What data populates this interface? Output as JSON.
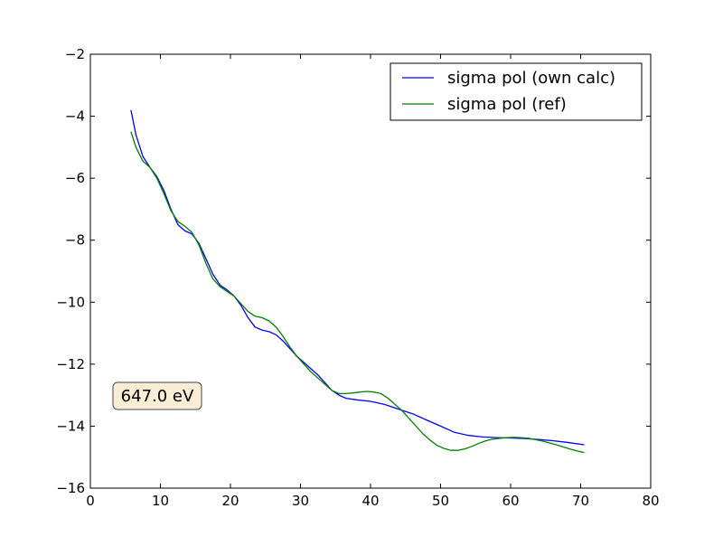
{
  "chart_data": {
    "type": "line",
    "xlim": [
      0,
      80
    ],
    "ylim": [
      -16,
      -2
    ],
    "x_ticks": [
      0,
      10,
      20,
      30,
      40,
      50,
      60,
      70,
      80
    ],
    "y_ticks": [
      -2,
      -4,
      -6,
      -8,
      -10,
      -12,
      -14,
      -16
    ],
    "x_tick_labels": [
      "0",
      "10",
      "20",
      "30",
      "40",
      "50",
      "60",
      "70",
      "80"
    ],
    "y_tick_labels": [
      "−2",
      "−4",
      "−6",
      "−8",
      "−10",
      "−12",
      "−14",
      "−16"
    ],
    "grid": false,
    "legend_position": "top-right",
    "annotation": "647.0 eV",
    "series": [
      {
        "name": "sigma pol (own calc)",
        "color": "#0000ff",
        "points": [
          [
            5.8,
            -3.8
          ],
          [
            6.5,
            -4.6
          ],
          [
            7.5,
            -5.3
          ],
          [
            8.5,
            -5.65
          ],
          [
            9.5,
            -5.95
          ],
          [
            10.5,
            -6.4
          ],
          [
            11.5,
            -7.0
          ],
          [
            12.5,
            -7.5
          ],
          [
            13.5,
            -7.7
          ],
          [
            14.5,
            -7.8
          ],
          [
            15.5,
            -8.1
          ],
          [
            16.5,
            -8.6
          ],
          [
            17.5,
            -9.1
          ],
          [
            18.5,
            -9.45
          ],
          [
            19.5,
            -9.6
          ],
          [
            20.5,
            -9.8
          ],
          [
            21.5,
            -10.1
          ],
          [
            22.5,
            -10.5
          ],
          [
            23.5,
            -10.8
          ],
          [
            24.5,
            -10.9
          ],
          [
            25.5,
            -10.95
          ],
          [
            26.5,
            -11.05
          ],
          [
            27.5,
            -11.25
          ],
          [
            28.5,
            -11.5
          ],
          [
            29.5,
            -11.75
          ],
          [
            30.5,
            -11.95
          ],
          [
            31.5,
            -12.15
          ],
          [
            32.5,
            -12.35
          ],
          [
            33.5,
            -12.6
          ],
          [
            34.5,
            -12.85
          ],
          [
            35.5,
            -13.0
          ],
          [
            36.5,
            -13.1
          ],
          [
            38.0,
            -13.15
          ],
          [
            40.0,
            -13.2
          ],
          [
            42.0,
            -13.3
          ],
          [
            44.0,
            -13.45
          ],
          [
            46.0,
            -13.6
          ],
          [
            48.0,
            -13.8
          ],
          [
            50.0,
            -14.0
          ],
          [
            52.0,
            -14.2
          ],
          [
            54.0,
            -14.3
          ],
          [
            56.0,
            -14.35
          ],
          [
            58.0,
            -14.37
          ],
          [
            60.0,
            -14.38
          ],
          [
            62.0,
            -14.4
          ],
          [
            64.0,
            -14.43
          ],
          [
            66.0,
            -14.47
          ],
          [
            68.0,
            -14.52
          ],
          [
            70.5,
            -14.6
          ]
        ]
      },
      {
        "name": "sigma pol (ref)",
        "color": "#008000",
        "points": [
          [
            5.8,
            -4.5
          ],
          [
            6.5,
            -5.0
          ],
          [
            7.5,
            -5.45
          ],
          [
            8.5,
            -5.65
          ],
          [
            9.5,
            -6.0
          ],
          [
            10.5,
            -6.5
          ],
          [
            11.5,
            -7.05
          ],
          [
            12.5,
            -7.4
          ],
          [
            13.5,
            -7.55
          ],
          [
            14.5,
            -7.75
          ],
          [
            15.5,
            -8.15
          ],
          [
            16.5,
            -8.75
          ],
          [
            17.5,
            -9.25
          ],
          [
            18.5,
            -9.5
          ],
          [
            19.5,
            -9.65
          ],
          [
            20.5,
            -9.8
          ],
          [
            21.5,
            -10.05
          ],
          [
            22.5,
            -10.3
          ],
          [
            23.5,
            -10.45
          ],
          [
            24.5,
            -10.5
          ],
          [
            25.5,
            -10.6
          ],
          [
            26.5,
            -10.8
          ],
          [
            27.5,
            -11.1
          ],
          [
            28.5,
            -11.45
          ],
          [
            29.5,
            -11.75
          ],
          [
            30.5,
            -12.0
          ],
          [
            31.5,
            -12.25
          ],
          [
            32.5,
            -12.45
          ],
          [
            33.5,
            -12.65
          ],
          [
            34.5,
            -12.85
          ],
          [
            35.5,
            -12.95
          ],
          [
            36.5,
            -12.95
          ],
          [
            37.5,
            -12.93
          ],
          [
            38.5,
            -12.9
          ],
          [
            39.5,
            -12.88
          ],
          [
            40.5,
            -12.9
          ],
          [
            41.5,
            -12.95
          ],
          [
            42.5,
            -13.1
          ],
          [
            43.5,
            -13.3
          ],
          [
            44.5,
            -13.5
          ],
          [
            45.5,
            -13.75
          ],
          [
            46.5,
            -14.0
          ],
          [
            47.5,
            -14.25
          ],
          [
            48.5,
            -14.45
          ],
          [
            49.5,
            -14.62
          ],
          [
            50.5,
            -14.72
          ],
          [
            51.5,
            -14.78
          ],
          [
            52.5,
            -14.78
          ],
          [
            53.5,
            -14.73
          ],
          [
            54.5,
            -14.65
          ],
          [
            55.5,
            -14.55
          ],
          [
            56.5,
            -14.47
          ],
          [
            57.5,
            -14.42
          ],
          [
            58.5,
            -14.39
          ],
          [
            59.5,
            -14.37
          ],
          [
            60.5,
            -14.36
          ],
          [
            61.5,
            -14.37
          ],
          [
            62.5,
            -14.39
          ],
          [
            63.5,
            -14.43
          ],
          [
            64.5,
            -14.48
          ],
          [
            65.5,
            -14.54
          ],
          [
            66.5,
            -14.6
          ],
          [
            67.5,
            -14.67
          ],
          [
            68.5,
            -14.74
          ],
          [
            69.5,
            -14.8
          ],
          [
            70.5,
            -14.85
          ]
        ]
      }
    ]
  }
}
